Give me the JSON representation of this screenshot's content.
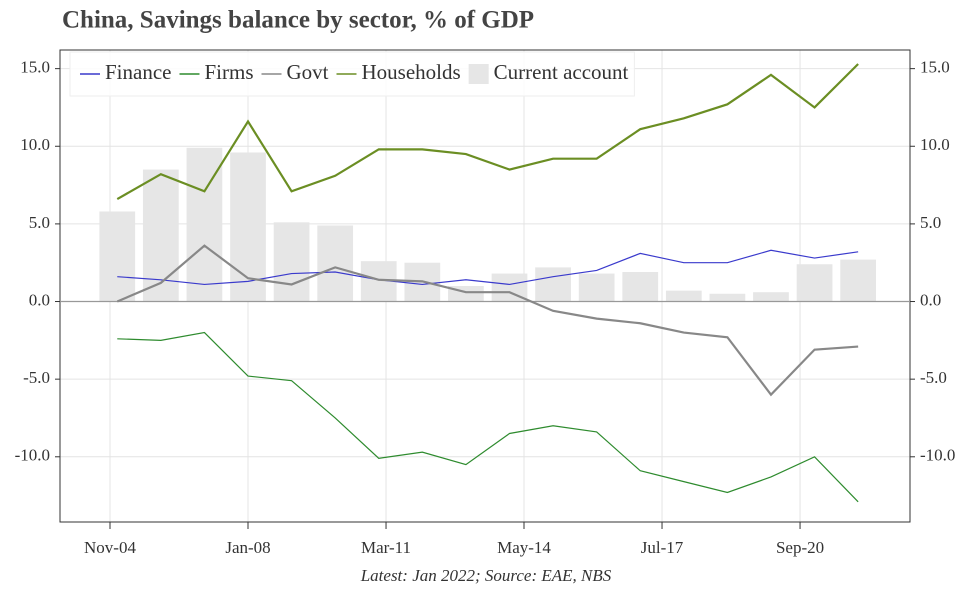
{
  "chart_data": {
    "type": "line",
    "title": "China, Savings balance by sector, % of GDP",
    "note": "Latest: Jan 2022; Source: EAE, NBS",
    "x": [
      2005,
      2006,
      2007,
      2008,
      2009,
      2010,
      2011,
      2012,
      2013,
      2014,
      2015,
      2016,
      2017,
      2018,
      2019,
      2020,
      2021,
      2022
    ],
    "xlim": [
      2003.686,
      2023.19
    ],
    "xticks": [
      {
        "value": 2004.833,
        "label": "Nov-04"
      },
      {
        "value": 2008.0,
        "label": "Jan-08"
      },
      {
        "value": 2011.167,
        "label": "Mar-11"
      },
      {
        "value": 2014.333,
        "label": "May-14"
      },
      {
        "value": 2017.5,
        "label": "Jul-17"
      },
      {
        "value": 2020.667,
        "label": "Sep-20"
      }
    ],
    "ylim": [
      -14.2,
      16.2
    ],
    "yticks": [
      {
        "value": -10,
        "label": "-10.0"
      },
      {
        "value": -5,
        "label": "-5.0"
      },
      {
        "value": 0,
        "label": "0.0"
      },
      {
        "value": 5,
        "label": "5.0"
      },
      {
        "value": 10,
        "label": "10.0"
      },
      {
        "value": 15,
        "label": "15.0"
      }
    ],
    "grid": true,
    "legend": "top-left",
    "series": [
      {
        "name": "Finance",
        "color": "#3a3acc",
        "type": "line",
        "values": [
          1.6,
          1.4,
          1.1,
          1.3,
          1.8,
          1.9,
          1.4,
          1.1,
          1.4,
          1.1,
          1.6,
          2.0,
          3.1,
          2.5,
          2.5,
          3.3,
          2.8,
          3.2
        ]
      },
      {
        "name": "Firms",
        "color": "#2e8b2e",
        "type": "line",
        "values": [
          -2.4,
          -2.5,
          -2.0,
          -4.8,
          -5.1,
          -7.5,
          -10.1,
          -9.7,
          -10.5,
          -8.5,
          -8.0,
          -8.4,
          -10.9,
          -11.6,
          -12.3,
          -11.3,
          -10.0,
          -12.9
        ]
      },
      {
        "name": "Govt",
        "color": "#888888",
        "type": "line",
        "values": [
          0.0,
          1.2,
          3.6,
          1.5,
          1.1,
          2.2,
          1.4,
          1.3,
          0.6,
          0.6,
          -0.6,
          -1.1,
          -1.4,
          -2.0,
          -2.3,
          -6.0,
          -3.1,
          -2.9
        ]
      },
      {
        "name": "Households",
        "color": "#6b8e23",
        "type": "line",
        "values": [
          6.6,
          8.2,
          7.1,
          11.6,
          7.1,
          8.1,
          9.8,
          9.8,
          9.5,
          8.5,
          9.2,
          9.2,
          11.1,
          11.8,
          12.7,
          14.6,
          12.5,
          15.3
        ]
      },
      {
        "name": "Current account",
        "color": "#e6e6e6",
        "type": "bar",
        "values": [
          5.8,
          8.5,
          9.9,
          9.6,
          5.1,
          4.9,
          2.6,
          2.5,
          1.0,
          1.8,
          2.2,
          1.8,
          1.9,
          0.7,
          0.5,
          0.6,
          2.4,
          2.7
        ]
      }
    ]
  }
}
